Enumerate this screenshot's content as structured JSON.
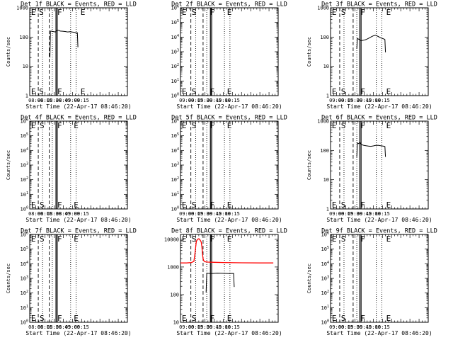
{
  "layout": {
    "rows": 3,
    "cols": 3
  },
  "colors": {
    "events": "#000000",
    "lld": "#ff0000",
    "axis": "#000000",
    "background": "#ffffff"
  },
  "chart_data": [
    {
      "type": "line",
      "yscale": "log",
      "ylim": [
        1,
        1000
      ],
      "title": "Det 1f BLACK = Events, RED = LLD",
      "ylabel": "Counts/sec",
      "xlabel": "Start Time (22-Apr-17 08:46:20)",
      "xlim": [
        "07:50",
        "10:30"
      ],
      "xticks": [
        "08:00",
        "08:15",
        "08:30",
        "08:45",
        "09:00",
        "09:15"
      ],
      "yticks": [
        "1",
        "10",
        "100",
        "1000"
      ],
      "marks": [
        {
          "label": "E",
          "x": "07:51"
        },
        {
          "label": "S",
          "x": "08:04"
        },
        {
          "label": "F",
          "x": "08:34"
        },
        {
          "label": "E",
          "x": "09:12"
        }
      ],
      "vlines": [
        {
          "x": "08:04",
          "style": "dashed"
        },
        {
          "x": "08:11",
          "style": "dotted"
        },
        {
          "x": "08:22",
          "style": "dashed"
        },
        {
          "x": "08:27",
          "style": "dotted"
        },
        {
          "x": "08:33",
          "style": "solid"
        },
        {
          "x": "08:35",
          "style": "solid"
        },
        {
          "x": "08:57",
          "style": "dotted"
        },
        {
          "x": "09:06",
          "style": "dotted"
        }
      ],
      "series": [
        {
          "color": "black",
          "x": [
            "08:23",
            "08:24",
            "08:26",
            "08:28",
            "08:32",
            "08:34",
            "08:36",
            "08:38",
            "08:40",
            "08:44",
            "08:48",
            "08:52",
            "08:56",
            "09:00",
            "09:04",
            "09:06",
            "09:07",
            "09:08",
            "09:09"
          ],
          "y": [
            20,
            160,
            158,
            155,
            150,
            165,
            172,
            168,
            160,
            158,
            155,
            150,
            152,
            148,
            145,
            140,
            135,
            140,
            45
          ]
        }
      ]
    },
    {
      "type": "line",
      "yscale": "log",
      "ylim": [
        1,
        1000000
      ],
      "title": "Det 2f BLACK = Events, RED = LLD",
      "ylabel": "",
      "xlabel": "Start Time (22-Apr-17 08:46:20)",
      "xlim": [
        "07:50",
        "10:30"
      ],
      "xticks": [
        "09:00",
        "09:15",
        "09:30",
        "09:45",
        "10:00",
        "10:15"
      ],
      "yticks": [
        "10^0",
        "10^1",
        "10^2",
        "10^3",
        "10^4",
        "10^5",
        "10^6"
      ],
      "marks": [
        {
          "label": "E",
          "x": "07:51"
        },
        {
          "label": "S",
          "x": "08:07"
        },
        {
          "label": "F",
          "x": "08:37"
        },
        {
          "label": "E",
          "x": "09:05"
        }
      ],
      "vlines": [
        {
          "x": "08:07",
          "style": "dashed"
        },
        {
          "x": "08:15",
          "style": "dotted"
        },
        {
          "x": "08:27",
          "style": "dashed"
        },
        {
          "x": "08:33",
          "style": "dotted"
        },
        {
          "x": "08:39",
          "style": "solid"
        },
        {
          "x": "08:41",
          "style": "solid"
        },
        {
          "x": "09:02",
          "style": "dotted"
        },
        {
          "x": "09:11",
          "style": "dotted"
        }
      ],
      "series": []
    },
    {
      "type": "line",
      "yscale": "log",
      "ylim": [
        1,
        1000
      ],
      "title": "Det 3f BLACK = Events, RED = LLD",
      "ylabel": "Counts/sec",
      "xlabel": "Start Time (22-Apr-17 08:46:20)",
      "xlim": [
        "07:50",
        "10:30"
      ],
      "xticks": [
        "09:00",
        "09:15",
        "09:30",
        "09:45",
        "10:00",
        "10:15"
      ],
      "yticks": [
        "1",
        "10",
        "100",
        "1000"
      ],
      "marks": [
        {
          "label": "E",
          "x": "07:51"
        },
        {
          "label": "S",
          "x": "08:06"
        },
        {
          "label": "F",
          "x": "08:38"
        },
        {
          "label": "E",
          "x": "09:20"
        }
      ],
      "vlines": [
        {
          "x": "08:05",
          "style": "dashed"
        },
        {
          "x": "08:12",
          "style": "dotted"
        },
        {
          "x": "08:27",
          "style": "dashed"
        },
        {
          "x": "08:33",
          "style": "dotted"
        },
        {
          "x": "08:38",
          "style": "solid"
        },
        {
          "x": "08:40",
          "style": "solid"
        },
        {
          "x": "09:05",
          "style": "dotted"
        },
        {
          "x": "09:14",
          "style": "dotted"
        }
      ],
      "series": [
        {
          "color": "black",
          "x": [
            "08:33",
            "08:34",
            "08:36",
            "08:38",
            "08:40",
            "08:44",
            "08:48",
            "08:52",
            "08:56",
            "09:00",
            "09:04",
            "09:08",
            "09:12",
            "09:16",
            "09:18",
            "09:19",
            "09:20"
          ],
          "y": [
            40,
            90,
            85,
            80,
            75,
            78,
            82,
            90,
            100,
            110,
            115,
            105,
            95,
            88,
            85,
            82,
            30
          ]
        }
      ]
    },
    {
      "type": "line",
      "yscale": "log",
      "ylim": [
        1,
        1000000
      ],
      "title": "Det 4f BLACK = Events, RED = LLD",
      "ylabel": "Counts/sec",
      "xlabel": "Start Time (22-Apr-17 08:46:20)",
      "xlim": [
        "07:50",
        "10:30"
      ],
      "xticks": [
        "08:00",
        "08:15",
        "08:30",
        "08:45",
        "09:00",
        "09:15"
      ],
      "yticks": [
        "10^0",
        "10^1",
        "10^2",
        "10^3",
        "10^4",
        "10^5",
        "10^6"
      ],
      "marks": [
        {
          "label": "E",
          "x": "07:51"
        },
        {
          "label": "S",
          "x": "08:05"
        },
        {
          "label": "F",
          "x": "08:34"
        },
        {
          "label": "E",
          "x": "09:01"
        }
      ],
      "vlines": [
        {
          "x": "08:04",
          "style": "dashed"
        },
        {
          "x": "08:11",
          "style": "dotted"
        },
        {
          "x": "08:22",
          "style": "dashed"
        },
        {
          "x": "08:27",
          "style": "dotted"
        },
        {
          "x": "08:33",
          "style": "solid"
        },
        {
          "x": "08:35",
          "style": "solid"
        },
        {
          "x": "08:57",
          "style": "dotted"
        },
        {
          "x": "09:06",
          "style": "dotted"
        }
      ],
      "series": []
    },
    {
      "type": "line",
      "yscale": "log",
      "ylim": [
        1,
        1000000
      ],
      "title": "Det 5f BLACK = Events, RED = LLD",
      "ylabel": "",
      "xlabel": "Start Time (22-Apr-17 08:46:20)",
      "xlim": [
        "07:50",
        "10:30"
      ],
      "xticks": [
        "09:00",
        "09:15",
        "09:30",
        "09:45",
        "10:00",
        "10:15"
      ],
      "yticks": [
        "10^0",
        "10^1",
        "10^2",
        "10^3",
        "10^4",
        "10^5",
        "10^6"
      ],
      "marks": [
        {
          "label": "E",
          "x": "07:51"
        },
        {
          "label": "S",
          "x": "08:07"
        },
        {
          "label": "F",
          "x": "08:37"
        },
        {
          "label": "E",
          "x": "09:05"
        }
      ],
      "vlines": [
        {
          "x": "08:07",
          "style": "dashed"
        },
        {
          "x": "08:15",
          "style": "dotted"
        },
        {
          "x": "08:27",
          "style": "dashed"
        },
        {
          "x": "08:33",
          "style": "dotted"
        },
        {
          "x": "08:39",
          "style": "solid"
        },
        {
          "x": "08:41",
          "style": "solid"
        },
        {
          "x": "09:02",
          "style": "dotted"
        },
        {
          "x": "09:11",
          "style": "dotted"
        }
      ],
      "series": []
    },
    {
      "type": "line",
      "yscale": "log",
      "ylim": [
        1,
        1000
      ],
      "title": "Det 6f BLACK = Events, RED = LLD",
      "ylabel": "Counts/sec",
      "xlabel": "Start Time (22-Apr-17 08:46:20)",
      "xlim": [
        "07:50",
        "10:30"
      ],
      "xticks": [
        "09:00",
        "09:15",
        "09:30",
        "09:45",
        "10:00",
        "10:15"
      ],
      "yticks": [
        "1",
        "10",
        "100",
        "1000"
      ],
      "marks": [
        {
          "label": "E",
          "x": "07:51"
        },
        {
          "label": "S",
          "x": "08:06"
        },
        {
          "label": "F",
          "x": "08:38"
        },
        {
          "label": "E",
          "x": "09:20"
        }
      ],
      "vlines": [
        {
          "x": "08:05",
          "style": "dashed"
        },
        {
          "x": "08:12",
          "style": "dotted"
        },
        {
          "x": "08:27",
          "style": "dashed"
        },
        {
          "x": "08:33",
          "style": "dotted"
        },
        {
          "x": "08:38",
          "style": "solid"
        },
        {
          "x": "08:40",
          "style": "solid"
        },
        {
          "x": "09:05",
          "style": "dotted"
        },
        {
          "x": "09:14",
          "style": "dotted"
        }
      ],
      "series": [
        {
          "color": "black",
          "x": [
            "08:33",
            "08:34",
            "08:36",
            "08:38",
            "08:40",
            "08:44",
            "08:48",
            "08:52",
            "08:56",
            "09:00",
            "09:04",
            "09:08",
            "09:12",
            "09:16",
            "09:18",
            "09:19",
            "09:20"
          ],
          "y": [
            60,
            180,
            170,
            190,
            160,
            150,
            145,
            140,
            138,
            142,
            148,
            150,
            145,
            140,
            138,
            135,
            60
          ]
        }
      ]
    },
    {
      "type": "line",
      "yscale": "log",
      "ylim": [
        1,
        1000000
      ],
      "title": "Det 7f BLACK = Events, RED = LLD",
      "ylabel": "Counts/sec",
      "xlabel": "Start Time (22-Apr-17 08:46:20)",
      "xlim": [
        "07:50",
        "10:30"
      ],
      "xticks": [
        "08:00",
        "08:15",
        "08:30",
        "08:45",
        "09:00",
        "09:15"
      ],
      "yticks": [
        "10^0",
        "10^1",
        "10^2",
        "10^3",
        "10^4",
        "10^5",
        "10^6"
      ],
      "marks": [
        {
          "label": "E",
          "x": "07:51"
        },
        {
          "label": "S",
          "x": "08:05"
        },
        {
          "label": "F",
          "x": "08:34"
        },
        {
          "label": "E",
          "x": "09:01"
        }
      ],
      "vlines": [
        {
          "x": "08:04",
          "style": "dashed"
        },
        {
          "x": "08:11",
          "style": "dotted"
        },
        {
          "x": "08:22",
          "style": "dashed"
        },
        {
          "x": "08:27",
          "style": "dotted"
        },
        {
          "x": "08:33",
          "style": "solid"
        },
        {
          "x": "08:35",
          "style": "solid"
        },
        {
          "x": "08:57",
          "style": "dotted"
        },
        {
          "x": "09:06",
          "style": "dotted"
        }
      ],
      "series": []
    },
    {
      "type": "line",
      "yscale": "log",
      "ylim": [
        10,
        15000
      ],
      "title": "Det 8f BLACK = Events, RED = LLD",
      "ylabel": "",
      "xlabel": "Start Time (22-Apr-17 08:46:20)",
      "xlim": [
        "07:50",
        "10:30"
      ],
      "xticks": [
        "09:00",
        "09:15",
        "09:30",
        "09:45",
        "10:00",
        "10:15"
      ],
      "yticks": [
        "10",
        "100",
        "1000",
        "10000"
      ],
      "marks": [
        {
          "label": "E",
          "x": "07:51"
        },
        {
          "label": "S",
          "x": "08:07"
        },
        {
          "label": "F",
          "x": "08:37"
        },
        {
          "label": "E",
          "x": "09:05"
        }
      ],
      "vlines": [
        {
          "x": "08:07",
          "style": "dashed"
        },
        {
          "x": "08:15",
          "style": "dotted"
        },
        {
          "x": "08:27",
          "style": "dashed"
        },
        {
          "x": "08:33",
          "style": "dotted"
        },
        {
          "x": "08:39",
          "style": "solid"
        },
        {
          "x": "08:41",
          "style": "solid"
        },
        {
          "x": "09:02",
          "style": "dotted"
        },
        {
          "x": "09:11",
          "style": "dotted"
        }
      ],
      "series": [
        {
          "color": "red",
          "x": [
            "07:50",
            "08:00",
            "08:08",
            "08:12",
            "08:14",
            "08:16",
            "08:18",
            "08:20",
            "08:22",
            "08:24",
            "08:25",
            "08:26",
            "08:27",
            "08:28",
            "08:29",
            "08:30",
            "08:35",
            "08:45",
            "09:00",
            "09:30",
            "10:00",
            "10:22"
          ],
          "y": [
            1400,
            1400,
            1450,
            1600,
            3500,
            8500,
            10000,
            10500,
            9500,
            8000,
            5500,
            3000,
            2000,
            1700,
            1600,
            1550,
            1500,
            1480,
            1450,
            1420,
            1400,
            1400
          ]
        },
        {
          "color": "black",
          "x": [
            "08:32",
            "08:33",
            "08:35",
            "08:40",
            "08:50",
            "09:00",
            "09:10",
            "09:15",
            "09:16",
            "09:17",
            "09:18"
          ],
          "y": [
            120,
            600,
            590,
            580,
            600,
            590,
            580,
            585,
            580,
            590,
            190
          ]
        }
      ]
    },
    {
      "type": "line",
      "yscale": "log",
      "ylim": [
        1,
        1000000
      ],
      "title": "Det 9f BLACK = Events, RED = LLD",
      "ylabel": "Counts/sec",
      "xlabel": "Start Time (22-Apr-17 08:46:20)",
      "xlim": [
        "07:50",
        "10:30"
      ],
      "xticks": [
        "09:00",
        "09:15",
        "09:30",
        "09:45",
        "10:00",
        "10:15"
      ],
      "yticks": [
        "10^0",
        "10^1",
        "10^2",
        "10^3",
        "10^4",
        "10^5",
        "10^6"
      ],
      "marks": [
        {
          "label": "E",
          "x": "07:51"
        },
        {
          "label": "S",
          "x": "08:06"
        },
        {
          "label": "F",
          "x": "08:38"
        },
        {
          "label": "E",
          "x": "09:20"
        }
      ],
      "vlines": [
        {
          "x": "08:05",
          "style": "dashed"
        },
        {
          "x": "08:12",
          "style": "dotted"
        },
        {
          "x": "08:27",
          "style": "dashed"
        },
        {
          "x": "08:33",
          "style": "dotted"
        },
        {
          "x": "08:38",
          "style": "solid"
        },
        {
          "x": "08:40",
          "style": "solid"
        },
        {
          "x": "09:05",
          "style": "dotted"
        },
        {
          "x": "09:14",
          "style": "dotted"
        }
      ],
      "series": []
    }
  ]
}
